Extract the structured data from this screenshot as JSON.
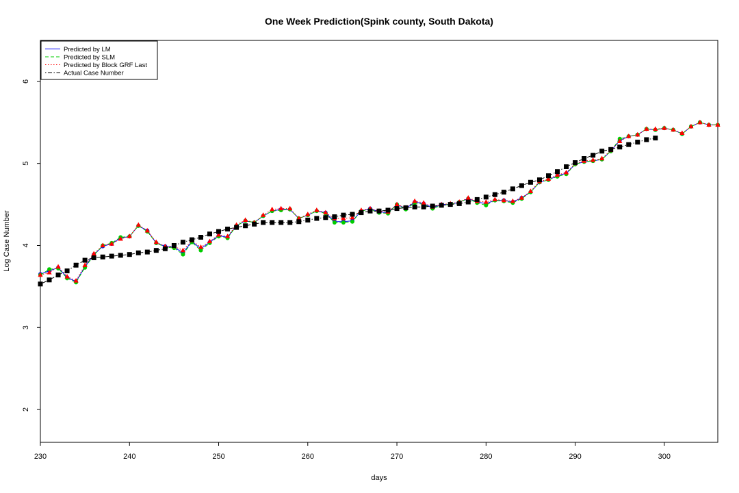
{
  "chart_data": {
    "type": "line",
    "title": "One Week Prediction(Spink county, South Dakota)",
    "xlabel": "days",
    "ylabel": "Log Case Number",
    "xlim": [
      230,
      306
    ],
    "ylim": [
      1.6,
      6.5
    ],
    "x_ticks": [
      230,
      240,
      250,
      260,
      270,
      280,
      290,
      300
    ],
    "y_ticks": [
      2,
      3,
      4,
      5,
      6
    ],
    "grid": false,
    "legend_position": "top-left",
    "x": [
      230,
      231,
      232,
      233,
      234,
      235,
      236,
      237,
      238,
      239,
      240,
      241,
      242,
      243,
      244,
      245,
      246,
      247,
      248,
      249,
      250,
      251,
      252,
      253,
      254,
      255,
      256,
      257,
      258,
      259,
      260,
      261,
      262,
      263,
      264,
      265,
      266,
      267,
      268,
      269,
      270,
      271,
      272,
      273,
      274,
      275,
      276,
      277,
      278,
      279,
      280,
      281,
      282,
      283,
      284,
      285,
      286,
      287,
      288,
      289,
      290,
      291,
      292,
      293,
      294,
      295,
      296,
      297,
      298,
      299,
      300,
      301,
      302,
      303,
      304,
      305,
      306
    ],
    "series": [
      {
        "name": "Predicted by LM",
        "color": "#0000ff",
        "line_style": "solid",
        "marker": "circle",
        "values": [
          3.65,
          3.69,
          3.73,
          3.61,
          3.56,
          3.74,
          3.89,
          3.99,
          4.02,
          4.09,
          4.11,
          4.24,
          4.18,
          4.03,
          3.99,
          3.98,
          3.91,
          4.05,
          3.96,
          4.04,
          4.12,
          4.1,
          4.24,
          4.3,
          4.28,
          4.36,
          4.42,
          4.44,
          4.44,
          4.33,
          4.37,
          4.42,
          4.4,
          4.29,
          4.29,
          4.3,
          4.42,
          4.45,
          4.41,
          4.4,
          4.5,
          4.45,
          4.53,
          4.51,
          4.46,
          4.5,
          4.5,
          4.53,
          4.57,
          4.53,
          4.51,
          4.55,
          4.55,
          4.53,
          4.58,
          4.65,
          4.77,
          4.8,
          4.85,
          4.88,
          4.99,
          5.02,
          5.03,
          5.05,
          5.15,
          5.28,
          5.33,
          5.35,
          5.42,
          5.41,
          5.43,
          5.41,
          5.36,
          5.45,
          5.5,
          5.47,
          5.47
        ]
      },
      {
        "name": "Predicted by SLM",
        "color": "#00cc00",
        "line_style": "dashed",
        "marker": "circle",
        "values": [
          3.64,
          3.71,
          3.72,
          3.6,
          3.55,
          3.73,
          3.88,
          4.0,
          4.03,
          4.1,
          4.11,
          4.24,
          4.17,
          4.03,
          3.98,
          3.97,
          3.89,
          4.04,
          3.94,
          4.03,
          4.11,
          4.09,
          4.24,
          4.3,
          4.28,
          4.36,
          4.42,
          4.43,
          4.44,
          4.33,
          4.37,
          4.42,
          4.39,
          4.28,
          4.28,
          4.29,
          4.42,
          4.44,
          4.4,
          4.39,
          4.5,
          4.44,
          4.52,
          4.5,
          4.45,
          4.49,
          4.5,
          4.53,
          4.57,
          4.52,
          4.49,
          4.55,
          4.54,
          4.52,
          4.57,
          4.65,
          4.77,
          4.8,
          4.84,
          4.87,
          4.99,
          5.02,
          5.03,
          5.05,
          5.15,
          5.3,
          5.33,
          5.35,
          5.42,
          5.41,
          5.43,
          5.41,
          5.36,
          5.45,
          5.5,
          5.47,
          5.47
        ]
      },
      {
        "name": "Predicted by Block GRF Last",
        "color": "#ff0000",
        "line_style": "dotted",
        "marker": "triangle",
        "values": [
          3.64,
          3.67,
          3.74,
          3.62,
          3.57,
          3.76,
          3.9,
          4.0,
          4.02,
          4.08,
          4.11,
          4.25,
          4.18,
          4.04,
          3.99,
          3.99,
          3.94,
          4.06,
          3.98,
          4.05,
          4.13,
          4.11,
          4.25,
          4.31,
          4.28,
          4.37,
          4.44,
          4.45,
          4.45,
          4.33,
          4.38,
          4.43,
          4.4,
          4.33,
          4.33,
          4.34,
          4.43,
          4.45,
          4.42,
          4.41,
          4.5,
          4.46,
          4.54,
          4.52,
          4.47,
          4.5,
          4.51,
          4.53,
          4.58,
          4.54,
          4.53,
          4.56,
          4.55,
          4.54,
          4.58,
          4.66,
          4.78,
          4.81,
          4.86,
          4.89,
          5.0,
          5.03,
          5.04,
          5.06,
          5.16,
          5.27,
          5.33,
          5.35,
          5.42,
          5.42,
          5.43,
          5.41,
          5.37,
          5.45,
          5.5,
          5.47,
          5.47
        ]
      },
      {
        "name": "Actual Case Number",
        "color": "#000000",
        "line_style": "dotdash",
        "marker": "square",
        "values": [
          3.53,
          3.58,
          3.64,
          3.69,
          3.76,
          3.82,
          3.85,
          3.86,
          3.87,
          3.88,
          3.89,
          3.91,
          3.92,
          3.94,
          3.96,
          4.0,
          4.04,
          4.07,
          4.1,
          4.14,
          4.17,
          4.2,
          4.22,
          4.24,
          4.26,
          4.28,
          4.28,
          4.28,
          4.28,
          4.29,
          4.31,
          4.33,
          4.34,
          4.35,
          4.37,
          4.38,
          4.4,
          4.42,
          4.42,
          4.43,
          4.45,
          4.46,
          4.47,
          4.47,
          4.48,
          4.49,
          4.5,
          4.51,
          4.53,
          4.56,
          4.59,
          4.62,
          4.65,
          4.69,
          4.73,
          4.77,
          4.8,
          4.85,
          4.9,
          4.96,
          5.01,
          5.06,
          5.1,
          5.15,
          5.17,
          5.2,
          5.23,
          5.26,
          5.29,
          5.31,
          null,
          null,
          null,
          null,
          null,
          null,
          null
        ]
      }
    ]
  }
}
